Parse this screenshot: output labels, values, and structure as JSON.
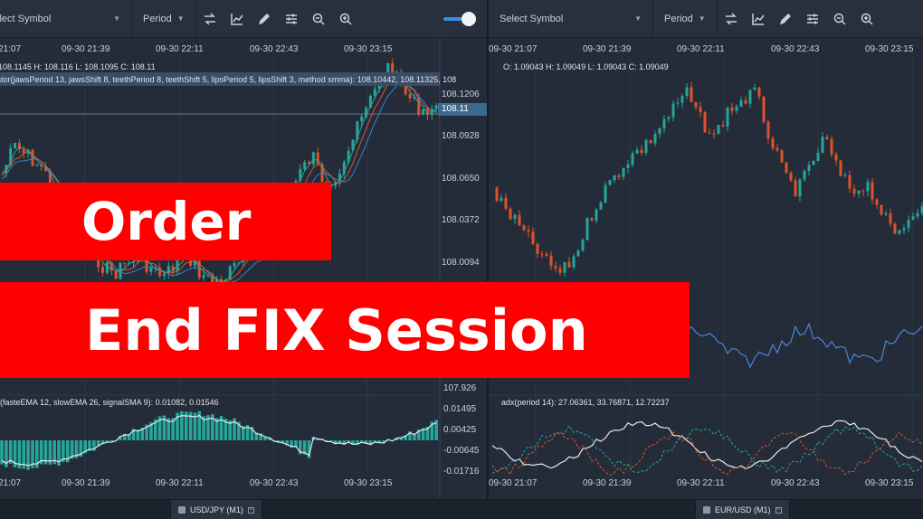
{
  "left_chart": {
    "symbol_placeholder": "Select Symbol",
    "period_label": "Period",
    "time_labels_top": [
      "21:07",
      "09-30 21:39",
      "09-30 22:11",
      "09-30 22:43",
      "09-30 23:15"
    ],
    "time_labels_bottom": [
      "21:07",
      "09-30 21:39",
      "09-30 22:11",
      "09-30 22:43",
      "09-30 23:15"
    ],
    "ohlc_text": "108.1145 H: 108.116 L: 108.1095 C: 108.11",
    "alligator_text": "ator(jawsPeriod 13, jawsShift 8, teethPeriod 8, teethShift 5, lipsPeriod 5, lipsShift 3, method smma): 108.10442, 108.11325, 108",
    "price_labels": [
      "108.1206",
      "108.0928",
      "108.0650",
      "108.0372",
      "108.0094",
      "107.926"
    ],
    "current_price": "108.11",
    "macd_text": "(fasteEMA 12, slowEMA 26, signalSMA 9): 0.01082, 0.01546",
    "macd_labels": [
      "0.01495",
      "0.00425",
      "-0.00645",
      "-0.01716"
    ],
    "footer_tab": "USD/JPY (M1)"
  },
  "right_chart": {
    "symbol_placeholder": "Select Symbol",
    "period_label": "Period",
    "time_labels_top": [
      "09-30 21:07",
      "09-30 21:39",
      "09-30 22:11",
      "09-30 22:43",
      "09-30 23:15"
    ],
    "time_labels_bottom": [
      "09-30 21:07",
      "09-30 21:39",
      "09-30 22:11",
      "09-30 22:43",
      "09-30 23:15"
    ],
    "ohlc_text": "O: 1.09043 H: 1.09049 L: 1.09043 C: 1.09049",
    "adx_text": "adx(period 14): 27.06361, 33.76871, 12.72237",
    "footer_tab": "EUR/USD (M1)"
  },
  "banner": {
    "line1": "Order",
    "line2": "End FIX Session"
  },
  "colors": {
    "bull": "#26a69a",
    "bear": "#e0522b",
    "banner": "#fe0000",
    "accent": "#3b8ee8"
  }
}
